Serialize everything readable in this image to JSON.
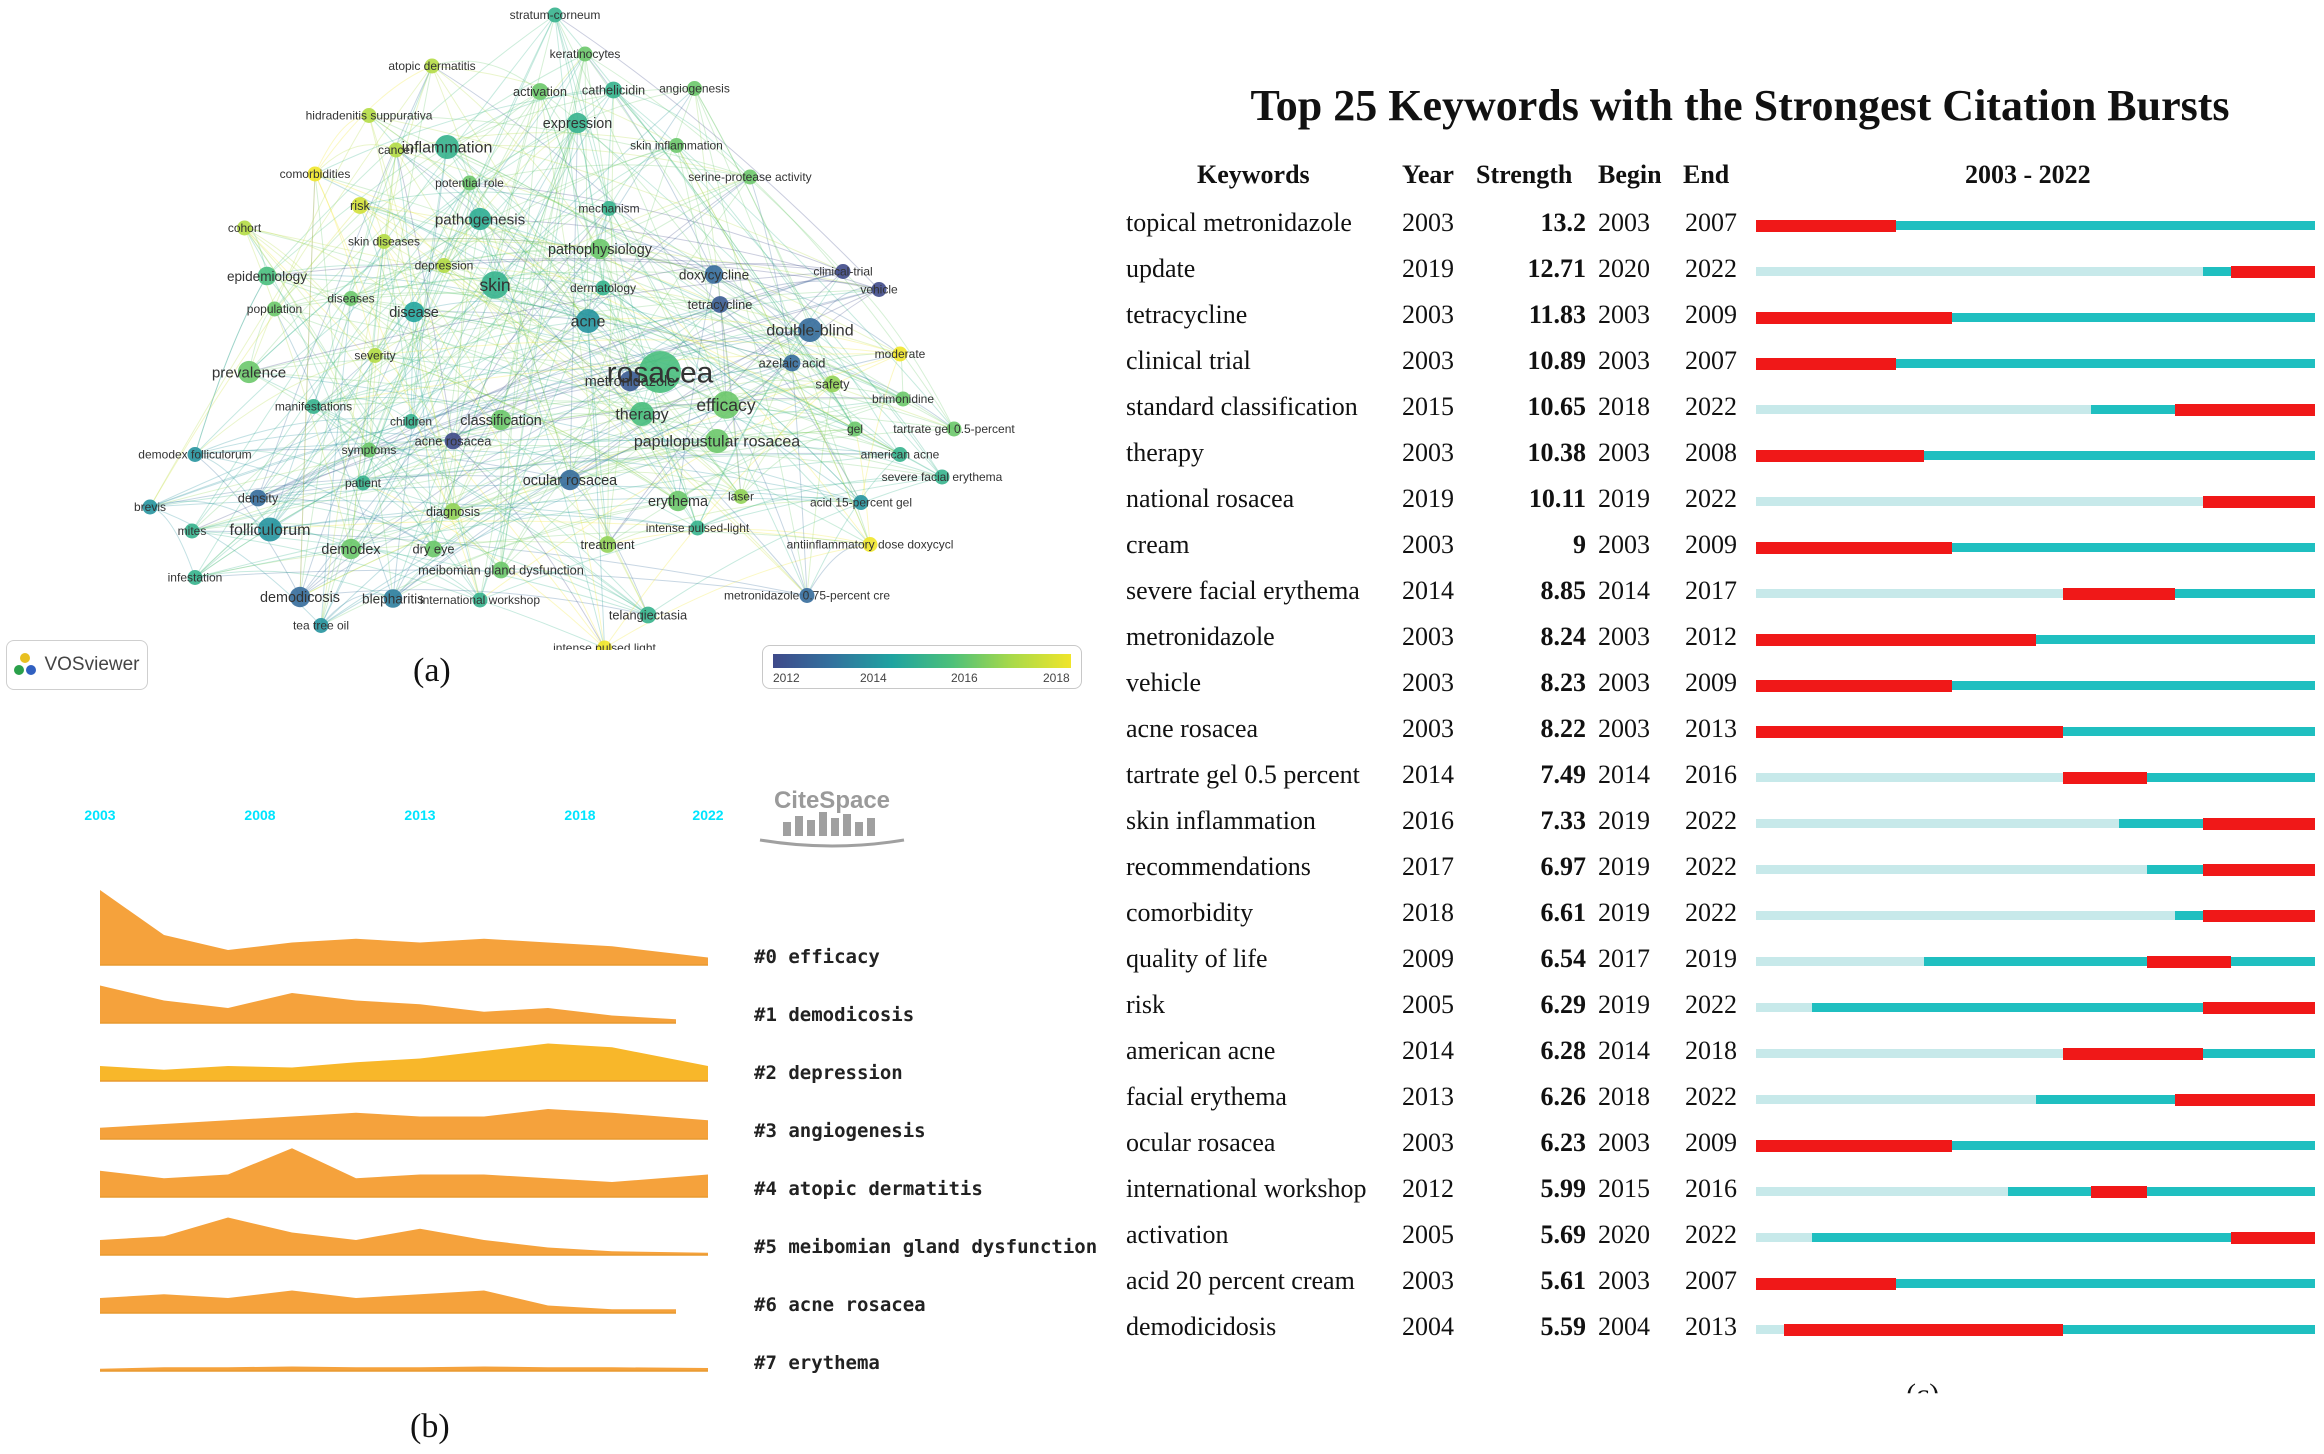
{
  "panels": {
    "a": {
      "label": "(a)"
    },
    "b": {
      "label": "(b)"
    },
    "c": {
      "label": "(c)"
    }
  },
  "vosviewer": {
    "logo_text": "VOSviewer",
    "colorbar_ticks": [
      "2012",
      "2014",
      "2016",
      "2018"
    ],
    "colors": {
      "low": "#3f4a8a",
      "mid": "#1fa3a0",
      "high": "#f0e52a"
    }
  },
  "citespace": {
    "logo_text": "CiteSpace",
    "years": [
      "2003",
      "2008",
      "2013",
      "2018",
      "2022"
    ],
    "year_color": "#00e5ff",
    "stream_color": "#f5a23c"
  },
  "chart_data": [
    {
      "type": "network",
      "panel": "(a)",
      "title": "",
      "color_scale": {
        "min": 2012,
        "max": 2018,
        "palette": "viridis"
      },
      "nodes": [
        {
          "label": "rosacea",
          "weight": 10,
          "year": 2015.5
        },
        {
          "label": "skin",
          "weight": 6,
          "year": 2015
        },
        {
          "label": "inflammation",
          "weight": 5,
          "year": 2015
        },
        {
          "label": "expression",
          "weight": 4,
          "year": 2015
        },
        {
          "label": "pathogenesis",
          "weight": 4.5,
          "year": 2014.8
        },
        {
          "label": "pathophysiology",
          "weight": 4,
          "year": 2016
        },
        {
          "label": "disease",
          "weight": 4,
          "year": 2014.5
        },
        {
          "label": "epidemiology",
          "weight": 3.5,
          "year": 2015.5
        },
        {
          "label": "prevalence",
          "weight": 4.5,
          "year": 2016
        },
        {
          "label": "acne",
          "weight": 5,
          "year": 2014
        },
        {
          "label": "classification",
          "weight": 4,
          "year": 2016
        },
        {
          "label": "double-blind",
          "weight": 5,
          "year": 2013
        },
        {
          "label": "efficacy",
          "weight": 6,
          "year": 2016
        },
        {
          "label": "therapy",
          "weight": 5,
          "year": 2015.5
        },
        {
          "label": "papulopustular rosacea",
          "weight": 5,
          "year": 2016
        },
        {
          "label": "ocular rosacea",
          "weight": 4,
          "year": 2013
        },
        {
          "label": "erythema",
          "weight": 4,
          "year": 2016
        },
        {
          "label": "demodex",
          "weight": 4,
          "year": 2016
        },
        {
          "label": "folliculorum",
          "weight": 5,
          "year": 2014
        },
        {
          "label": "density",
          "weight": 3,
          "year": 2013
        },
        {
          "label": "demodicosis",
          "weight": 4,
          "year": 2013
        },
        {
          "label": "blepharitis",
          "weight": 3.5,
          "year": 2013.5
        },
        {
          "label": "metronidazole",
          "weight": 4,
          "year": 2012.5
        },
        {
          "label": "doxycycline",
          "weight": 3.5,
          "year": 2013
        },
        {
          "label": "tetracycline",
          "weight": 3,
          "year": 2012.5
        },
        {
          "label": "azelaic acid",
          "weight": 3,
          "year": 2013
        },
        {
          "label": "safety",
          "weight": 3,
          "year": 2016.5
        },
        {
          "label": "moderate",
          "weight": 2.5,
          "year": 2018
        },
        {
          "label": "brimonidine",
          "weight": 2.5,
          "year": 2016
        },
        {
          "label": "gel",
          "weight": 2.5,
          "year": 2016
        },
        {
          "label": "tartrate gel 0.5-percent",
          "weight": 2.5,
          "year": 2016
        },
        {
          "label": "american acne",
          "weight": 2.5,
          "year": 2015
        },
        {
          "label": "severe facial erythema",
          "weight": 2.5,
          "year": 2015
        },
        {
          "label": "acid 15-percent gel",
          "weight": 2.5,
          "year": 2014
        },
        {
          "label": "laser",
          "weight": 2.5,
          "year": 2016.5
        },
        {
          "label": "intense pulsed-light",
          "weight": 2.5,
          "year": 2015
        },
        {
          "label": "antiinflammatory dose doxycycl",
          "weight": 2.5,
          "year": 2018
        },
        {
          "label": "metronidazole 0.75-percent cre",
          "weight": 2.5,
          "year": 2013
        },
        {
          "label": "telangiectasia",
          "weight": 3,
          "year": 2015
        },
        {
          "label": "intense pulsed light",
          "weight": 2.5,
          "year": 2018
        },
        {
          "label": "treatment",
          "weight": 3,
          "year": 2016.5
        },
        {
          "label": "diagnosis",
          "weight": 3,
          "year": 2016.5
        },
        {
          "label": "dry eye",
          "weight": 3,
          "year": 2016
        },
        {
          "label": "meibomian gland dysfunction",
          "weight": 3,
          "year": 2016
        },
        {
          "label": "international workshop",
          "weight": 2.5,
          "year": 2015
        },
        {
          "label": "tea tree oil",
          "weight": 2.5,
          "year": 2014
        },
        {
          "label": "infestation",
          "weight": 2.5,
          "year": 2015
        },
        {
          "label": "mites",
          "weight": 2.5,
          "year": 2015
        },
        {
          "label": "brevis",
          "weight": 2.5,
          "year": 2014
        },
        {
          "label": "demodex folliculorum",
          "weight": 2.5,
          "year": 2014
        },
        {
          "label": "patient",
          "weight": 2.5,
          "year": 2015
        },
        {
          "label": "symptoms",
          "weight": 2.5,
          "year": 2016
        },
        {
          "label": "acne rosacea",
          "weight": 3,
          "year": 2012
        },
        {
          "label": "children",
          "weight": 2.5,
          "year": 2015
        },
        {
          "label": "manifestations",
          "weight": 2.5,
          "year": 2015
        },
        {
          "label": "severity",
          "weight": 2.5,
          "year": 2017
        },
        {
          "label": "population",
          "weight": 2.5,
          "year": 2016
        },
        {
          "label": "diseases",
          "weight": 2.5,
          "year": 2016
        },
        {
          "label": "depression",
          "weight": 2.5,
          "year": 2017
        },
        {
          "label": "skin diseases",
          "weight": 2.5,
          "year": 2017
        },
        {
          "label": "cohort",
          "weight": 2.5,
          "year": 2017
        },
        {
          "label": "risk",
          "weight": 3,
          "year": 2017.5
        },
        {
          "label": "comorbidities",
          "weight": 2.5,
          "year": 2018
        },
        {
          "label": "cancer",
          "weight": 2.5,
          "year": 2017
        },
        {
          "label": "potential role",
          "weight": 2.5,
          "year": 2016
        },
        {
          "label": "hidradenitis suppurativa",
          "weight": 2.5,
          "year": 2017
        },
        {
          "label": "atopic dermatitis",
          "weight": 2.5,
          "year": 2017
        },
        {
          "label": "activation",
          "weight": 3,
          "year": 2016
        },
        {
          "label": "cathelicidin",
          "weight": 3,
          "year": 2015
        },
        {
          "label": "angiogenesis",
          "weight": 2.5,
          "year": 2016
        },
        {
          "label": "keratinocytes",
          "weight": 2.5,
          "year": 2016
        },
        {
          "label": "stratum-corneum",
          "weight": 2.5,
          "year": 2015
        },
        {
          "label": "skin inflammation",
          "weight": 2.5,
          "year": 2016
        },
        {
          "label": "serine-protease activity",
          "weight": 2.5,
          "year": 2016
        },
        {
          "label": "mechanism",
          "weight": 2.5,
          "year": 2015
        },
        {
          "label": "dermatology",
          "weight": 2.5,
          "year": 2015
        },
        {
          "label": "clinical-trial",
          "weight": 2.5,
          "year": 2012
        },
        {
          "label": "vehicle",
          "weight": 2.5,
          "year": 2012
        }
      ]
    },
    {
      "type": "area",
      "panel": "(b)",
      "title": "",
      "x_range": [
        2003,
        2022
      ],
      "series": [
        {
          "name": "#0 efficacy",
          "x": [
            2003,
            2005,
            2007,
            2009,
            2011,
            2013,
            2015,
            2017,
            2019,
            2022
          ],
          "values": [
            1.0,
            0.4,
            0.2,
            0.3,
            0.35,
            0.3,
            0.35,
            0.3,
            0.25,
            0.1
          ]
        },
        {
          "name": "#1 demodicosis",
          "x": [
            2003,
            2005,
            2007,
            2009,
            2011,
            2013,
            2015,
            2017,
            2019,
            2021
          ],
          "values": [
            0.5,
            0.3,
            0.2,
            0.4,
            0.3,
            0.25,
            0.15,
            0.2,
            0.1,
            0.05
          ]
        },
        {
          "name": "#2 depression",
          "x": [
            2003,
            2005,
            2007,
            2009,
            2011,
            2013,
            2015,
            2017,
            2019,
            2022
          ],
          "values": [
            0.2,
            0.15,
            0.2,
            0.18,
            0.25,
            0.3,
            0.4,
            0.5,
            0.45,
            0.2
          ]
        },
        {
          "name": "#3 angiogenesis",
          "x": [
            2003,
            2005,
            2007,
            2009,
            2011,
            2013,
            2015,
            2017,
            2019,
            2022
          ],
          "values": [
            0.15,
            0.2,
            0.25,
            0.3,
            0.35,
            0.3,
            0.3,
            0.4,
            0.35,
            0.25
          ]
        },
        {
          "name": "#4 atopic dermatitis",
          "x": [
            2003,
            2005,
            2007,
            2009,
            2011,
            2013,
            2015,
            2017,
            2019,
            2022
          ],
          "values": [
            0.35,
            0.25,
            0.3,
            0.65,
            0.25,
            0.3,
            0.3,
            0.25,
            0.2,
            0.3
          ]
        },
        {
          "name": "#5 meibomian gland dysfunction",
          "x": [
            2003,
            2005,
            2007,
            2009,
            2011,
            2013,
            2015,
            2017,
            2019,
            2022
          ],
          "values": [
            0.2,
            0.25,
            0.5,
            0.3,
            0.2,
            0.35,
            0.2,
            0.1,
            0.05,
            0.03
          ]
        },
        {
          "name": "#6 acne rosacea",
          "x": [
            2003,
            2005,
            2007,
            2009,
            2011,
            2013,
            2015,
            2017,
            2019,
            2021
          ],
          "values": [
            0.2,
            0.25,
            0.2,
            0.3,
            0.2,
            0.25,
            0.3,
            0.1,
            0.05,
            0.05
          ]
        },
        {
          "name": "#7 erythema",
          "x": [
            2003,
            2005,
            2007,
            2009,
            2011,
            2013,
            2015,
            2017,
            2019,
            2022
          ],
          "values": [
            0.03,
            0.05,
            0.05,
            0.06,
            0.05,
            0.05,
            0.06,
            0.05,
            0.05,
            0.04
          ]
        }
      ]
    },
    {
      "type": "table",
      "panel": "(c)",
      "title": "Top 25 Keywords with the Strongest Citation Bursts",
      "columns": [
        "Keywords",
        "Year",
        "Strength",
        "Begin",
        "End",
        "2003 - 2022"
      ],
      "x_range": [
        2003,
        2022
      ],
      "rows": [
        {
          "keyword": "topical metronidazole",
          "year": 2003,
          "strength": "13.2",
          "begin": 2003,
          "end": 2007
        },
        {
          "keyword": "update",
          "year": 2019,
          "strength": "12.71",
          "begin": 2020,
          "end": 2022
        },
        {
          "keyword": "tetracycline",
          "year": 2003,
          "strength": "11.83",
          "begin": 2003,
          "end": 2009
        },
        {
          "keyword": "clinical trial",
          "year": 2003,
          "strength": "10.89",
          "begin": 2003,
          "end": 2007
        },
        {
          "keyword": "standard classification",
          "year": 2015,
          "strength": "10.65",
          "begin": 2018,
          "end": 2022
        },
        {
          "keyword": "therapy",
          "year": 2003,
          "strength": "10.38",
          "begin": 2003,
          "end": 2008
        },
        {
          "keyword": "national rosacea",
          "year": 2019,
          "strength": "10.11",
          "begin": 2019,
          "end": 2022
        },
        {
          "keyword": "cream",
          "year": 2003,
          "strength": "9",
          "begin": 2003,
          "end": 2009
        },
        {
          "keyword": "severe facial erythema",
          "year": 2014,
          "strength": "8.85",
          "begin": 2014,
          "end": 2017
        },
        {
          "keyword": "metronidazole",
          "year": 2003,
          "strength": "8.24",
          "begin": 2003,
          "end": 2012
        },
        {
          "keyword": "vehicle",
          "year": 2003,
          "strength": "8.23",
          "begin": 2003,
          "end": 2009
        },
        {
          "keyword": "acne rosacea",
          "year": 2003,
          "strength": "8.22",
          "begin": 2003,
          "end": 2013
        },
        {
          "keyword": "tartrate gel 0.5 percent",
          "year": 2014,
          "strength": "7.49",
          "begin": 2014,
          "end": 2016
        },
        {
          "keyword": "skin inflammation",
          "year": 2016,
          "strength": "7.33",
          "begin": 2019,
          "end": 2022
        },
        {
          "keyword": "recommendations",
          "year": 2017,
          "strength": "6.97",
          "begin": 2019,
          "end": 2022
        },
        {
          "keyword": "comorbidity",
          "year": 2018,
          "strength": "6.61",
          "begin": 2019,
          "end": 2022
        },
        {
          "keyword": "quality of life",
          "year": 2009,
          "strength": "6.54",
          "begin": 2017,
          "end": 2019
        },
        {
          "keyword": "risk",
          "year": 2005,
          "strength": "6.29",
          "begin": 2019,
          "end": 2022
        },
        {
          "keyword": "american acne",
          "year": 2014,
          "strength": "6.28",
          "begin": 2014,
          "end": 2018
        },
        {
          "keyword": "facial erythema",
          "year": 2013,
          "strength": "6.26",
          "begin": 2018,
          "end": 2022
        },
        {
          "keyword": "ocular rosacea",
          "year": 2003,
          "strength": "6.23",
          "begin": 2003,
          "end": 2009
        },
        {
          "keyword": "international workshop",
          "year": 2012,
          "strength": "5.99",
          "begin": 2015,
          "end": 2016
        },
        {
          "keyword": "activation",
          "year": 2005,
          "strength": "5.69",
          "begin": 2020,
          "end": 2022
        },
        {
          "keyword": "acid 20 percent cream",
          "year": 2003,
          "strength": "5.61",
          "begin": 2003,
          "end": 2007
        },
        {
          "keyword": "demodicidosis",
          "year": 2004,
          "strength": "5.59",
          "begin": 2004,
          "end": 2013
        }
      ],
      "colors": {
        "before": "#c7e9ea",
        "after": "#1fbfc0",
        "burst": "#f01818"
      }
    }
  ]
}
